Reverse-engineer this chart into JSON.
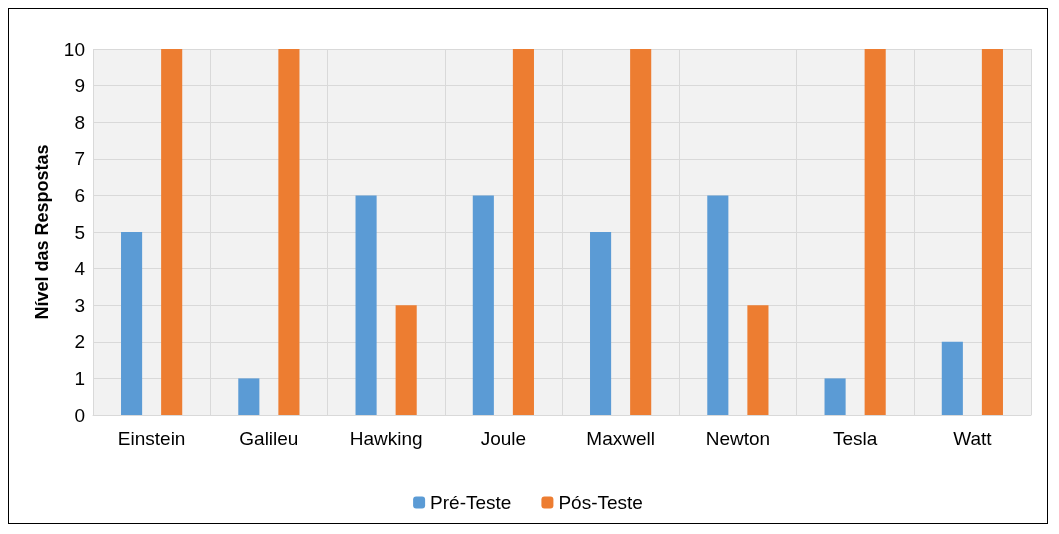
{
  "chart_data": {
    "type": "bar",
    "ylabel": "Nível das Respostas",
    "categories": [
      "Einstein",
      "Galileu",
      "Hawking",
      "Joule",
      "Maxwell",
      "Newton",
      "Tesla",
      "Watt"
    ],
    "series": [
      {
        "name": "Pré-Teste",
        "color": "#5b9bd5",
        "values": [
          5,
          1,
          6,
          6,
          5,
          6,
          1,
          2
        ]
      },
      {
        "name": "Pós-Teste",
        "color": "#ed7d31",
        "values": [
          10,
          10,
          3,
          10,
          10,
          3,
          10,
          10
        ]
      }
    ],
    "ylim": [
      0,
      10
    ],
    "yticks": [
      0,
      1,
      2,
      3,
      4,
      5,
      6,
      7,
      8,
      9,
      10
    ],
    "grid": true,
    "legend": "bottom"
  }
}
